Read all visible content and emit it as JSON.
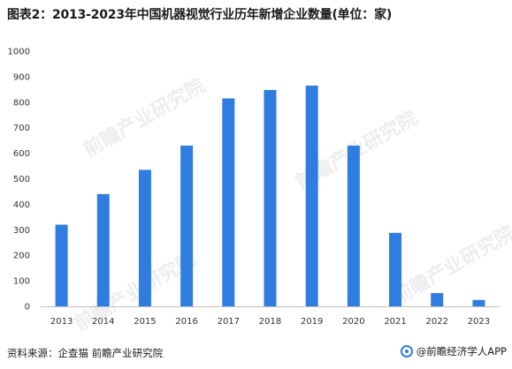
{
  "title": "图表2：2013-2023年中国机器视觉行业历年新增企业数量(单位：家)",
  "source": "资料来源：企查猫 前瞻产业研究院",
  "brand": "@前瞻经济学人APP",
  "watermark": "前瞻产业研究院",
  "colors": {
    "bar": "#2f7de1",
    "axis": "#bfbfbf",
    "text": "#333333"
  },
  "chart_data": {
    "type": "bar",
    "title": "图表2：2013-2023年中国机器视觉行业历年新增企业数量(单位：家)",
    "categories": [
      "2013",
      "2014",
      "2015",
      "2016",
      "2017",
      "2018",
      "2019",
      "2020",
      "2021",
      "2022",
      "2023"
    ],
    "values": [
      320,
      440,
      535,
      630,
      815,
      848,
      865,
      630,
      288,
      52,
      25
    ],
    "ylim": [
      0,
      1000
    ],
    "yticks": [
      0,
      100,
      200,
      300,
      400,
      500,
      600,
      700,
      800,
      900,
      1000
    ],
    "grid": false,
    "legend": "none"
  }
}
